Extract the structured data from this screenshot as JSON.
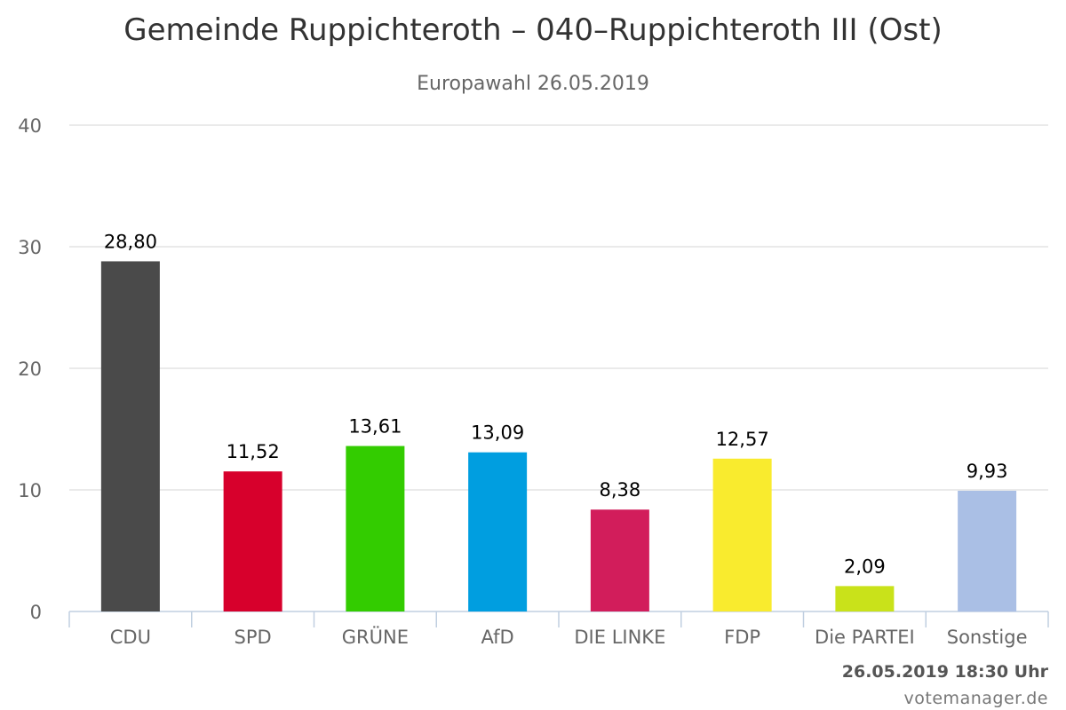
{
  "header": {
    "title": "Gemeinde Ruppichteroth – 040–Ruppichteroth III (Ost)",
    "subtitle": "Europawahl 26.05.2019"
  },
  "footer": {
    "timestamp": "26.05.2019 18:30 Uhr",
    "credit": "votemanager.de"
  },
  "chart_data": {
    "type": "bar",
    "title": "Gemeinde Ruppichteroth – 040–Ruppichteroth III (Ost)",
    "subtitle": "Europawahl 26.05.2019",
    "categories": [
      "CDU",
      "SPD",
      "GRÜNE",
      "AfD",
      "DIE LINKE",
      "FDP",
      "Die PARTEI",
      "Sonstige"
    ],
    "values": [
      28.8,
      11.52,
      13.61,
      13.09,
      8.38,
      12.57,
      2.09,
      9.93
    ],
    "data_labels": [
      "28,80",
      "11,52",
      "13,61",
      "13,09",
      "8,38",
      "12,57",
      "2,09",
      "9,93"
    ],
    "colors": [
      "#4a4a4a",
      "#d7002c",
      "#33cc00",
      "#009ee0",
      "#d21d5b",
      "#f9eb2e",
      "#c9e21a",
      "#aabfe5"
    ],
    "yticks": [
      0,
      10,
      20,
      30,
      40
    ],
    "ylim": [
      0,
      40
    ],
    "xlabel": "",
    "ylabel": "",
    "grid": true
  }
}
